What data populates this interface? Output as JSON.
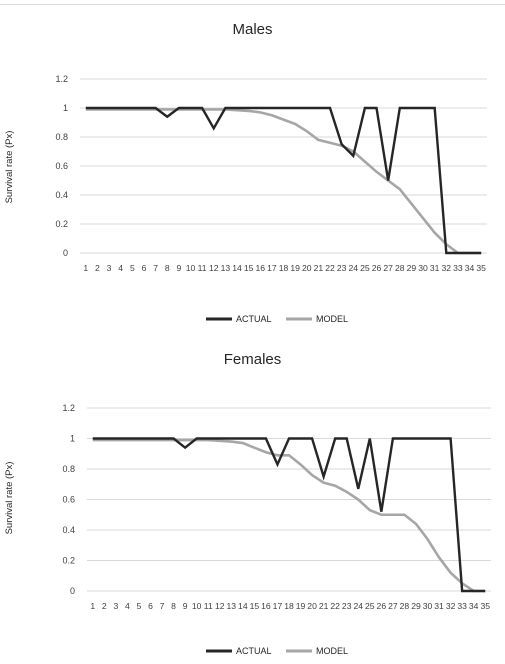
{
  "colors": {
    "actual": "#262626",
    "model": "#a6a6a6",
    "grid": "#d9d9d9"
  },
  "chart_data": [
    {
      "type": "line",
      "title": "Males",
      "ylabel": "Survival rate  (Px)",
      "xlabel": "",
      "ylim": [
        0,
        1.2
      ],
      "yticks": [
        "0",
        "0.2",
        "0.4",
        "0.6",
        "0.8",
        "1",
        "1.2"
      ],
      "grid": true,
      "legend": "bottom",
      "categories": [
        "1",
        "2",
        "3",
        "4",
        "5",
        "6",
        "7",
        "8",
        "9",
        "10",
        "11",
        "12",
        "13",
        "14",
        "15",
        "16",
        "17",
        "18",
        "19",
        "20",
        "21",
        "22",
        "23",
        "24",
        "25",
        "26",
        "27",
        "28",
        "29",
        "30",
        "31",
        "32",
        "33",
        "34",
        "35"
      ],
      "series": [
        {
          "name": "ACTUAL",
          "values": [
            1,
            1,
            1,
            1,
            1,
            1,
            1,
            0.94,
            1,
            1,
            1,
            0.86,
            1,
            1,
            1,
            1,
            1,
            1,
            1,
            1,
            1,
            1,
            0.75,
            0.67,
            1,
            1,
            0.5,
            1,
            1,
            1,
            1,
            0,
            0,
            0,
            0
          ]
        },
        {
          "name": "MODEL",
          "values": [
            0.99,
            0.99,
            0.99,
            0.99,
            0.99,
            0.99,
            0.99,
            0.99,
            0.99,
            0.99,
            0.99,
            0.99,
            0.99,
            0.985,
            0.98,
            0.97,
            0.95,
            0.92,
            0.89,
            0.84,
            0.78,
            0.76,
            0.74,
            0.7,
            0.63,
            0.56,
            0.5,
            0.44,
            0.34,
            0.24,
            0.14,
            0.06,
            0,
            0,
            0
          ]
        }
      ]
    },
    {
      "type": "line",
      "title": "Females",
      "ylabel": "Survival rate (Px)",
      "xlabel": "",
      "ylim": [
        0,
        1.2
      ],
      "yticks": [
        "0",
        "0.2",
        "0.4",
        "0.6",
        "0.8",
        "1",
        "1.2"
      ],
      "grid": true,
      "legend": "bottom",
      "categories": [
        "1",
        "2",
        "3",
        "4",
        "5",
        "6",
        "7",
        "8",
        "9",
        "10",
        "11",
        "12",
        "13",
        "14",
        "15",
        "16",
        "17",
        "18",
        "19",
        "20",
        "21",
        "22",
        "23",
        "24",
        "25",
        "26",
        "27",
        "28",
        "29",
        "30",
        "31",
        "32",
        "33",
        "34",
        "35"
      ],
      "series": [
        {
          "name": "ACTUAL",
          "values": [
            1,
            1,
            1,
            1,
            1,
            1,
            1,
            1,
            0.94,
            1,
            1,
            1,
            1,
            1,
            1,
            1,
            0.83,
            1,
            1,
            1,
            0.75,
            1,
            1,
            0.67,
            1,
            0.52,
            1,
            1,
            1,
            1,
            1,
            1,
            0,
            0,
            0
          ]
        },
        {
          "name": "MODEL",
          "values": [
            0.99,
            0.99,
            0.99,
            0.99,
            0.99,
            0.99,
            0.99,
            0.99,
            0.99,
            0.99,
            0.99,
            0.985,
            0.98,
            0.97,
            0.94,
            0.91,
            0.89,
            0.89,
            0.83,
            0.76,
            0.71,
            0.69,
            0.65,
            0.6,
            0.53,
            0.5,
            0.5,
            0.5,
            0.44,
            0.34,
            0.22,
            0.12,
            0.05,
            0,
            0
          ]
        }
      ]
    }
  ]
}
